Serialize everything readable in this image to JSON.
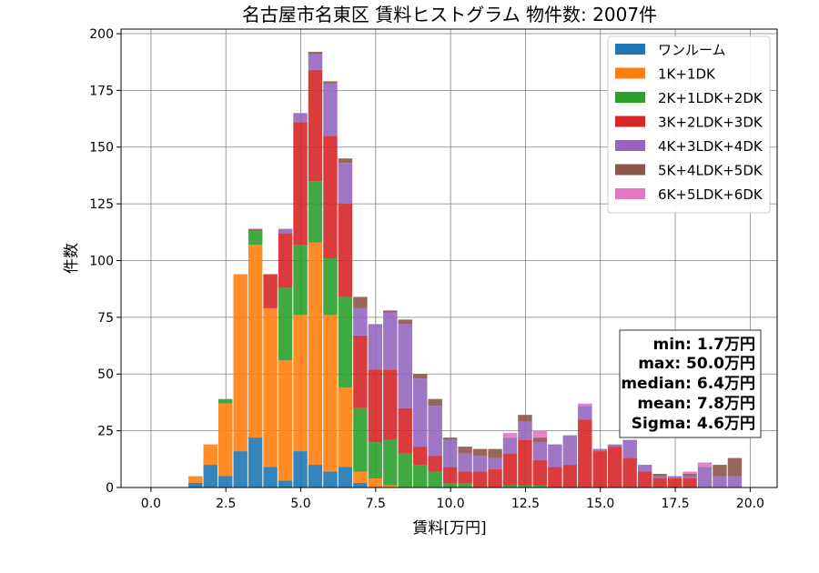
{
  "chart_data": {
    "type": "bar",
    "stacked": true,
    "title": "名古屋市名東区 賃料ヒストグラム 物件数: 2007件",
    "xlabel": "賃料[万円]",
    "ylabel": "件数",
    "xlim": [
      -1.0,
      20.9
    ],
    "ylim": [
      0,
      202
    ],
    "grid": true,
    "legend_position": "top-right",
    "bin_width": 0.5,
    "xticks": [
      "0.0",
      "2.5",
      "5.0",
      "7.5",
      "10.0",
      "12.5",
      "15.0",
      "17.5",
      "20.0"
    ],
    "yticks": [
      "0",
      "25",
      "50",
      "75",
      "100",
      "125",
      "150",
      "175",
      "200"
    ],
    "bin_starts": [
      1.25,
      1.75,
      2.25,
      2.75,
      3.25,
      3.75,
      4.25,
      4.75,
      5.25,
      5.75,
      6.25,
      6.75,
      7.25,
      7.75,
      8.25,
      8.75,
      9.25,
      9.75,
      10.25,
      10.75,
      11.25,
      11.75,
      12.25,
      12.75,
      13.25,
      13.75,
      14.25,
      14.75,
      15.25,
      15.75,
      16.25,
      16.75,
      17.25,
      17.75,
      18.25,
      18.75,
      19.25
    ],
    "series": [
      {
        "name": "ワンルーム",
        "color": "#1f77b4",
        "values": [
          2,
          10,
          5,
          16,
          22,
          9,
          3,
          16,
          10,
          7,
          9,
          2,
          0,
          0,
          0,
          0,
          0,
          0,
          0,
          0,
          0,
          0,
          0,
          0,
          0,
          0,
          0,
          0,
          0,
          0,
          0,
          0,
          0,
          0,
          0,
          0,
          0
        ]
      },
      {
        "name": "1K+1DK",
        "color": "#ff7f0e",
        "values": [
          3,
          9,
          32,
          78,
          85,
          70,
          53,
          60,
          98,
          69,
          35,
          5,
          4,
          1,
          0,
          0,
          0,
          0,
          0,
          0,
          0,
          0,
          0,
          0,
          0,
          0,
          0,
          0,
          0,
          0,
          0,
          0,
          0,
          0,
          0,
          0,
          0
        ]
      },
      {
        "name": "2K+1LDK+2DK",
        "color": "#2ca02c",
        "values": [
          0,
          0,
          2,
          0,
          6,
          0,
          32,
          31,
          27,
          25,
          40,
          28,
          16,
          20,
          15,
          10,
          7,
          2,
          2,
          0,
          0,
          1,
          1,
          1,
          0,
          0,
          0,
          0,
          0,
          0,
          0,
          0,
          0,
          0,
          0,
          0,
          0
        ]
      },
      {
        "name": "3K+2LDK+3DK",
        "color": "#d62728",
        "values": [
          0,
          0,
          0,
          0,
          0,
          15,
          24,
          54,
          49,
          54,
          41,
          32,
          32,
          31,
          20,
          8,
          7,
          7,
          5,
          7,
          8,
          14,
          20,
          11,
          9,
          10,
          30,
          16,
          18,
          13,
          7,
          4,
          4,
          4,
          0,
          0,
          0
        ]
      },
      {
        "name": "4K+3LDK+4DK",
        "color": "#9467bd",
        "values": [
          0,
          0,
          0,
          0,
          0,
          0,
          2,
          4,
          7,
          23,
          18,
          12,
          20,
          25,
          37,
          30,
          22,
          12,
          8,
          7,
          5,
          7,
          8,
          8,
          10,
          13,
          6,
          1,
          1,
          8,
          3,
          1,
          1,
          1,
          9,
          5,
          5
        ]
      },
      {
        "name": "5K+4LDK+5DK",
        "color": "#8c564b",
        "values": [
          0,
          0,
          0,
          0,
          1,
          0,
          0,
          0,
          1,
          1,
          2,
          5,
          0,
          1,
          2,
          2,
          3,
          1,
          3,
          3,
          4,
          0,
          3,
          2,
          0,
          0,
          0,
          0,
          0,
          0,
          0,
          1,
          0,
          1,
          0,
          5,
          8
        ]
      },
      {
        "name": "6K+5LDK+6DK",
        "color": "#e377c2",
        "values": [
          0,
          0,
          0,
          0,
          0,
          0,
          0,
          0,
          0,
          0,
          0,
          0,
          0,
          0,
          0,
          0,
          0,
          0,
          0,
          0,
          0,
          2,
          0,
          3,
          0,
          0,
          1,
          0,
          0,
          0,
          0,
          0,
          0,
          1,
          2,
          0,
          0
        ]
      }
    ],
    "stats": {
      "min": "min: 1.7万円",
      "max": "max: 50.0万円",
      "median": "median: 6.4万円",
      "mean": "mean: 7.8万円",
      "sigma": "Sigma: 4.6万円"
    }
  }
}
